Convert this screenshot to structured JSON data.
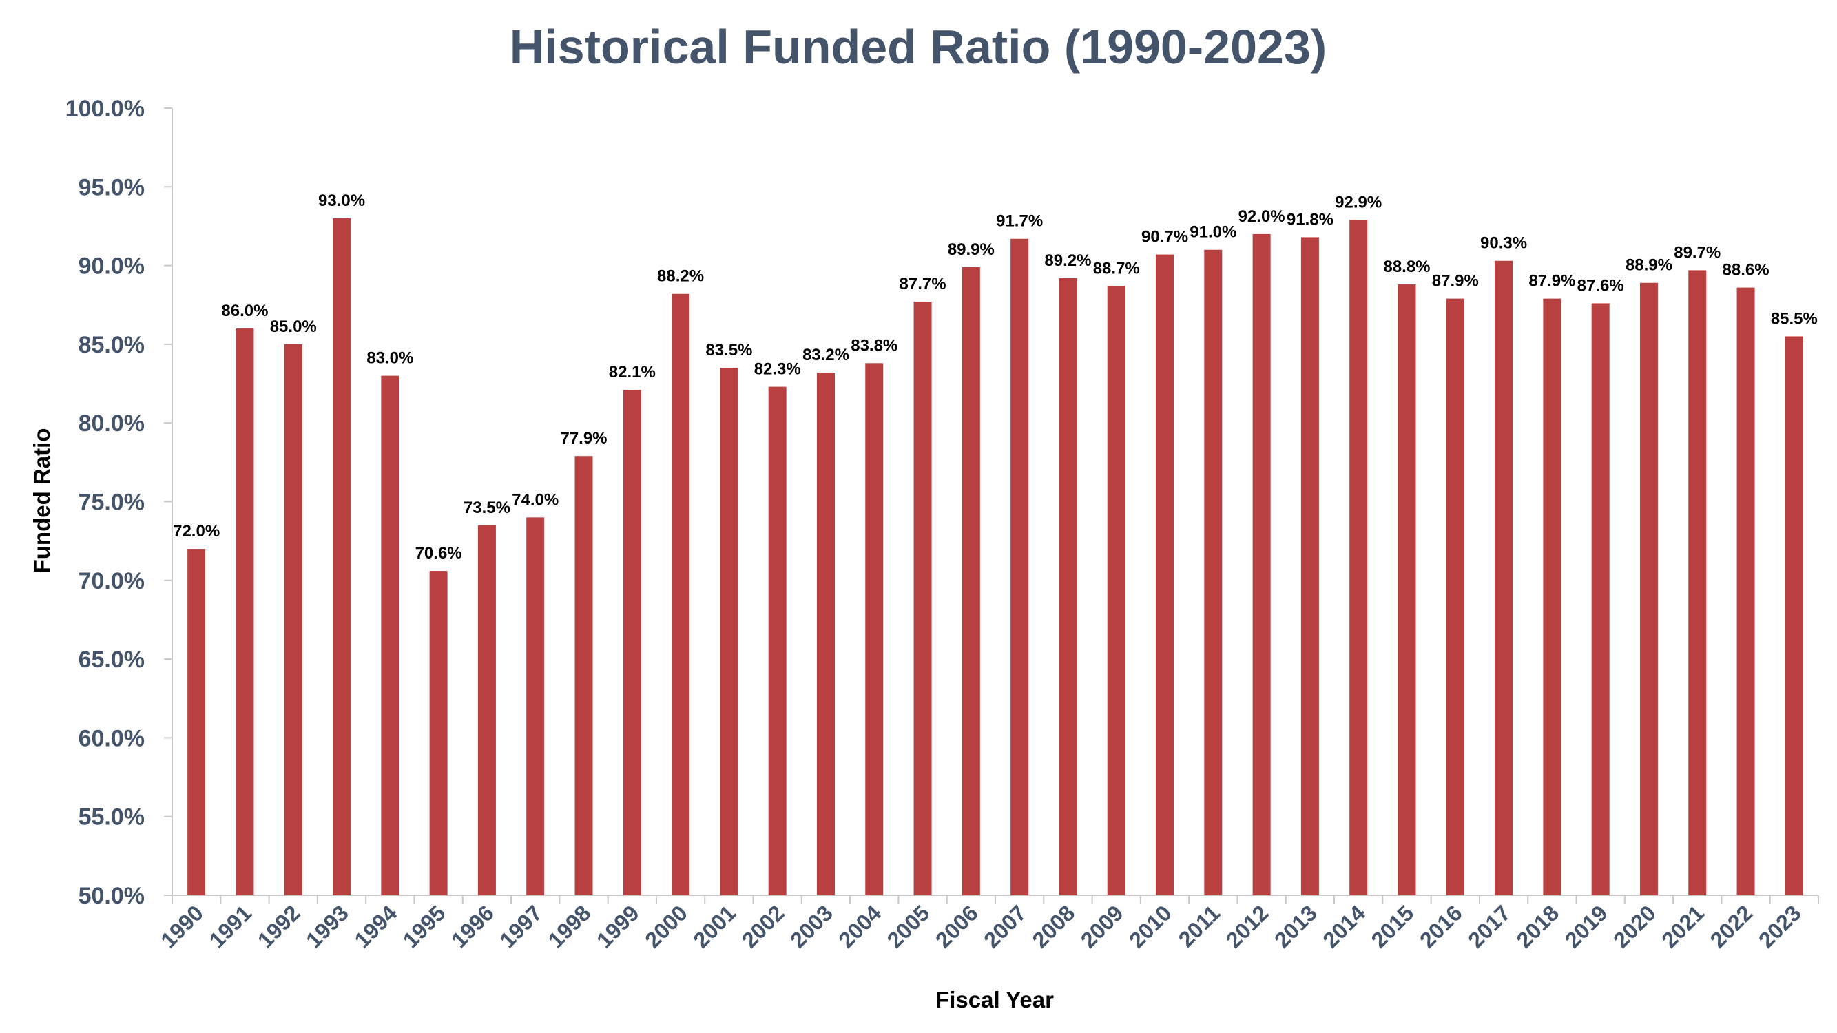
{
  "chart_data": {
    "type": "bar",
    "title": "Historical Funded Ratio (1990-2023)",
    "xlabel": "Fiscal Year",
    "ylabel": "Funded Ratio",
    "ylim": [
      50,
      100
    ],
    "y_ticks": [
      "50.0%",
      "55.0%",
      "60.0%",
      "65.0%",
      "70.0%",
      "75.0%",
      "80.0%",
      "85.0%",
      "90.0%",
      "95.0%",
      "100.0%"
    ],
    "y_tick_values": [
      50,
      55,
      60,
      65,
      70,
      75,
      80,
      85,
      90,
      95,
      100
    ],
    "categories": [
      "1990",
      "1991",
      "1992",
      "1993",
      "1994",
      "1995",
      "1996",
      "1997",
      "1998",
      "1999",
      "2000",
      "2001",
      "2002",
      "2003",
      "2004",
      "2005",
      "2006",
      "2007",
      "2008",
      "2009",
      "2010",
      "2011",
      "2012",
      "2013",
      "2014",
      "2015",
      "2016",
      "2017",
      "2018",
      "2019",
      "2020",
      "2021",
      "2022",
      "2023"
    ],
    "values": [
      72.0,
      86.0,
      85.0,
      93.0,
      83.0,
      70.6,
      73.5,
      74.0,
      77.9,
      82.1,
      88.2,
      83.5,
      82.3,
      83.2,
      83.8,
      87.7,
      89.9,
      91.7,
      89.2,
      88.7,
      90.7,
      91.0,
      92.0,
      91.8,
      92.9,
      88.8,
      87.9,
      90.3,
      87.9,
      87.6,
      88.9,
      89.7,
      88.6,
      85.5
    ],
    "data_labels": [
      "72.0%",
      "86.0%",
      "85.0%",
      "93.0%",
      "83.0%",
      "70.6%",
      "73.5%",
      "74.0%",
      "77.9%",
      "82.1%",
      "88.2%",
      "83.5%",
      "82.3%",
      "83.2%",
      "83.8%",
      "87.7%",
      "89.9%",
      "91.7%",
      "89.2%",
      "88.7%",
      "90.7%",
      "91.0%",
      "92.0%",
      "91.8%",
      "92.9%",
      "88.8%",
      "87.9%",
      "90.3%",
      "87.9%",
      "87.6%",
      "88.9%",
      "89.7%",
      "88.6%",
      "85.5%"
    ],
    "bar_color": "#b94040",
    "axis_color": "#c8c8c8",
    "grid": false,
    "legend": "none"
  }
}
